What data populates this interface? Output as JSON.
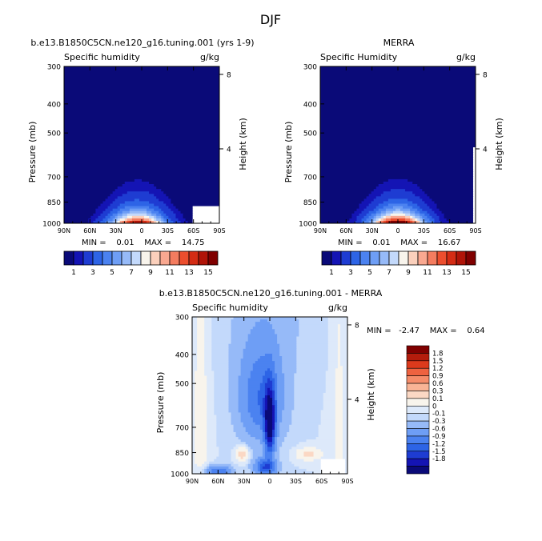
{
  "figure_title": "DJF",
  "colors": {
    "abs_scale": [
      "#0a0a78",
      "#1414b4",
      "#1e3cd2",
      "#2d64e6",
      "#4b82f0",
      "#6e9ef5",
      "#96baf8",
      "#c3d9fb",
      "#f8f4ec",
      "#fbd0bc",
      "#f9a890",
      "#f47c5f",
      "#ec4e2e",
      "#d42c14",
      "#b01408",
      "#800000"
    ],
    "diff_scale": [
      "#0a0a78",
      "#1414b4",
      "#1e3cd2",
      "#2d64e6",
      "#4b82f0",
      "#6e9ef5",
      "#96baf8",
      "#c3d9fb",
      "#dde9fa",
      "#f8f4ec",
      "#fbd8c4",
      "#f9b496",
      "#f58c6a",
      "#ee6240",
      "#dc3a1c",
      "#b41c0c",
      "#800000"
    ],
    "missing": "#ffffff"
  },
  "chart_data": [
    {
      "type": "contour",
      "title": "b.e13.B1850C5CN.ne120_g16.tuning.001 (yrs 1-9)",
      "variable": "Specific humidity",
      "units": "g/kg",
      "ylabel": "Pressure (mb)",
      "ylabel_right": "Height (km)",
      "x_ticks": [
        "90N",
        "60N",
        "30N",
        "0",
        "30S",
        "60S",
        "90S"
      ],
      "x_values": [
        90,
        60,
        30,
        0,
        -30,
        -60,
        -90
      ],
      "y_ticks": [
        300,
        400,
        500,
        700,
        850,
        1000
      ],
      "y_range": [
        300,
        1000
      ],
      "height_ticks": [
        8,
        4
      ],
      "stats_label": "MIN =    0.01    MAX =    14.75",
      "min": 0.01,
      "max": 14.75,
      "peak_lat": 5,
      "colorbar_labels": [
        "1",
        "3",
        "5",
        "7",
        "9",
        "11",
        "13",
        "15"
      ],
      "levels": [
        0.5,
        1,
        2,
        3,
        4,
        5,
        6,
        7,
        8,
        9,
        10,
        11,
        12,
        13,
        14
      ]
    },
    {
      "type": "contour",
      "title": "MERRA",
      "variable": "Specific Humidity",
      "units": "g/kg",
      "ylabel": "Pressure (mb)",
      "ylabel_right": "Height (km)",
      "x_ticks": [
        "90N",
        "60N",
        "30N",
        "0",
        "30S",
        "60S",
        "90S"
      ],
      "x_values": [
        90,
        60,
        30,
        0,
        -30,
        -60,
        -90
      ],
      "y_ticks": [
        300,
        400,
        500,
        700,
        850,
        1000
      ],
      "y_range": [
        300,
        1000
      ],
      "height_ticks": [
        8,
        4
      ],
      "stats_label": "MIN =    0.01    MAX =    16.67",
      "min": 0.01,
      "max": 16.67,
      "peak_lat": 0,
      "colorbar_labels": [
        "1",
        "3",
        "5",
        "7",
        "9",
        "11",
        "13",
        "15"
      ],
      "levels": [
        0.5,
        1,
        2,
        3,
        4,
        5,
        6,
        7,
        8,
        9,
        10,
        11,
        12,
        13,
        14
      ]
    },
    {
      "type": "contour",
      "title": "b.e13.B1850C5CN.ne120_g16.tuning.001 - MERRA",
      "variable": "Specific humidity",
      "units": "g/kg",
      "ylabel": "Pressure (mb)",
      "ylabel_right": "Height (km)",
      "x_ticks": [
        "90N",
        "60N",
        "30N",
        "0",
        "30S",
        "60S",
        "90S"
      ],
      "x_values": [
        90,
        60,
        30,
        0,
        -30,
        -60,
        -90
      ],
      "y_ticks": [
        300,
        400,
        500,
        700,
        850,
        1000
      ],
      "y_range": [
        300,
        1000
      ],
      "height_ticks": [
        8,
        4
      ],
      "stats_label": "MIN =   -2.47    MAX =    0.64",
      "min": -2.47,
      "max": 0.64,
      "colorbar_labels": [
        "1.8",
        "1.5",
        "1.2",
        "0.9",
        "0.6",
        "0.3",
        "0.1",
        "0",
        "-0.1",
        "-0.3",
        "-0.6",
        "-0.9",
        "-1.2",
        "-1.5",
        "-1.8"
      ],
      "levels": [
        -1.8,
        -1.5,
        -1.2,
        -0.9,
        -0.6,
        -0.3,
        -0.1,
        0,
        0.1,
        0.3,
        0.6,
        0.9,
        1.2,
        1.5,
        1.8
      ]
    }
  ]
}
